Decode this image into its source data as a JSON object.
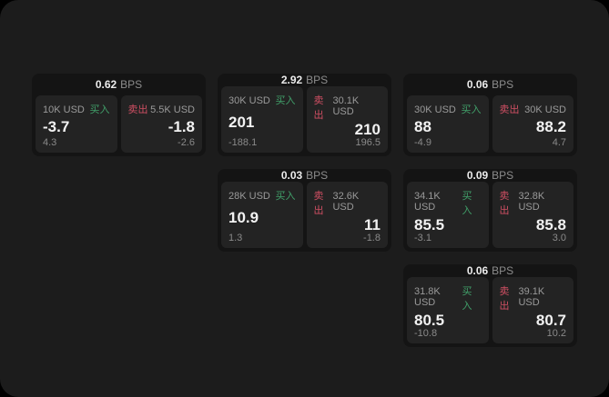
{
  "labels": {
    "bps_unit": "BPS",
    "buy": "买入",
    "sell": "卖出"
  },
  "colors": {
    "backdrop": "#000000",
    "panel_bg": "#1c1c1c",
    "card_bg": "#141414",
    "side_bg": "#232323",
    "buy_green": "#41a06a",
    "sell_red": "#cf4f63",
    "value_white": "#f2f2f2",
    "muted_gray": "#9a9a9a"
  },
  "cards": [
    {
      "bps": "0.62",
      "buy": {
        "amount": "10K USD",
        "value": "-3.7",
        "delta": "4.3"
      },
      "sell": {
        "amount": "5.5K USD",
        "value": "-1.8",
        "delta": "-2.6"
      }
    },
    {
      "bps": "2.92",
      "buy": {
        "amount": "30K USD",
        "value": "201",
        "delta": "-188.1"
      },
      "sell": {
        "amount": "30.1K USD",
        "value": "210",
        "delta": "196.5"
      }
    },
    {
      "bps": "0.06",
      "buy": {
        "amount": "30K USD",
        "value": "88",
        "delta": "-4.9"
      },
      "sell": {
        "amount": "30K USD",
        "value": "88.2",
        "delta": "4.7"
      }
    },
    {
      "bps": "0.03",
      "buy": {
        "amount": "28K USD",
        "value": "10.9",
        "delta": "1.3"
      },
      "sell": {
        "amount": "32.6K USD",
        "value": "11",
        "delta": "-1.8"
      }
    },
    {
      "bps": "0.09",
      "buy": {
        "amount": "34.1K USD",
        "value": "85.5",
        "delta": "-3.1"
      },
      "sell": {
        "amount": "32.8K USD",
        "value": "85.8",
        "delta": "3.0"
      }
    },
    {
      "bps": "0.06",
      "buy": {
        "amount": "31.8K USD",
        "value": "80.5",
        "delta": "-10.8"
      },
      "sell": {
        "amount": "39.1K USD",
        "value": "80.7",
        "delta": "10.2"
      }
    }
  ]
}
